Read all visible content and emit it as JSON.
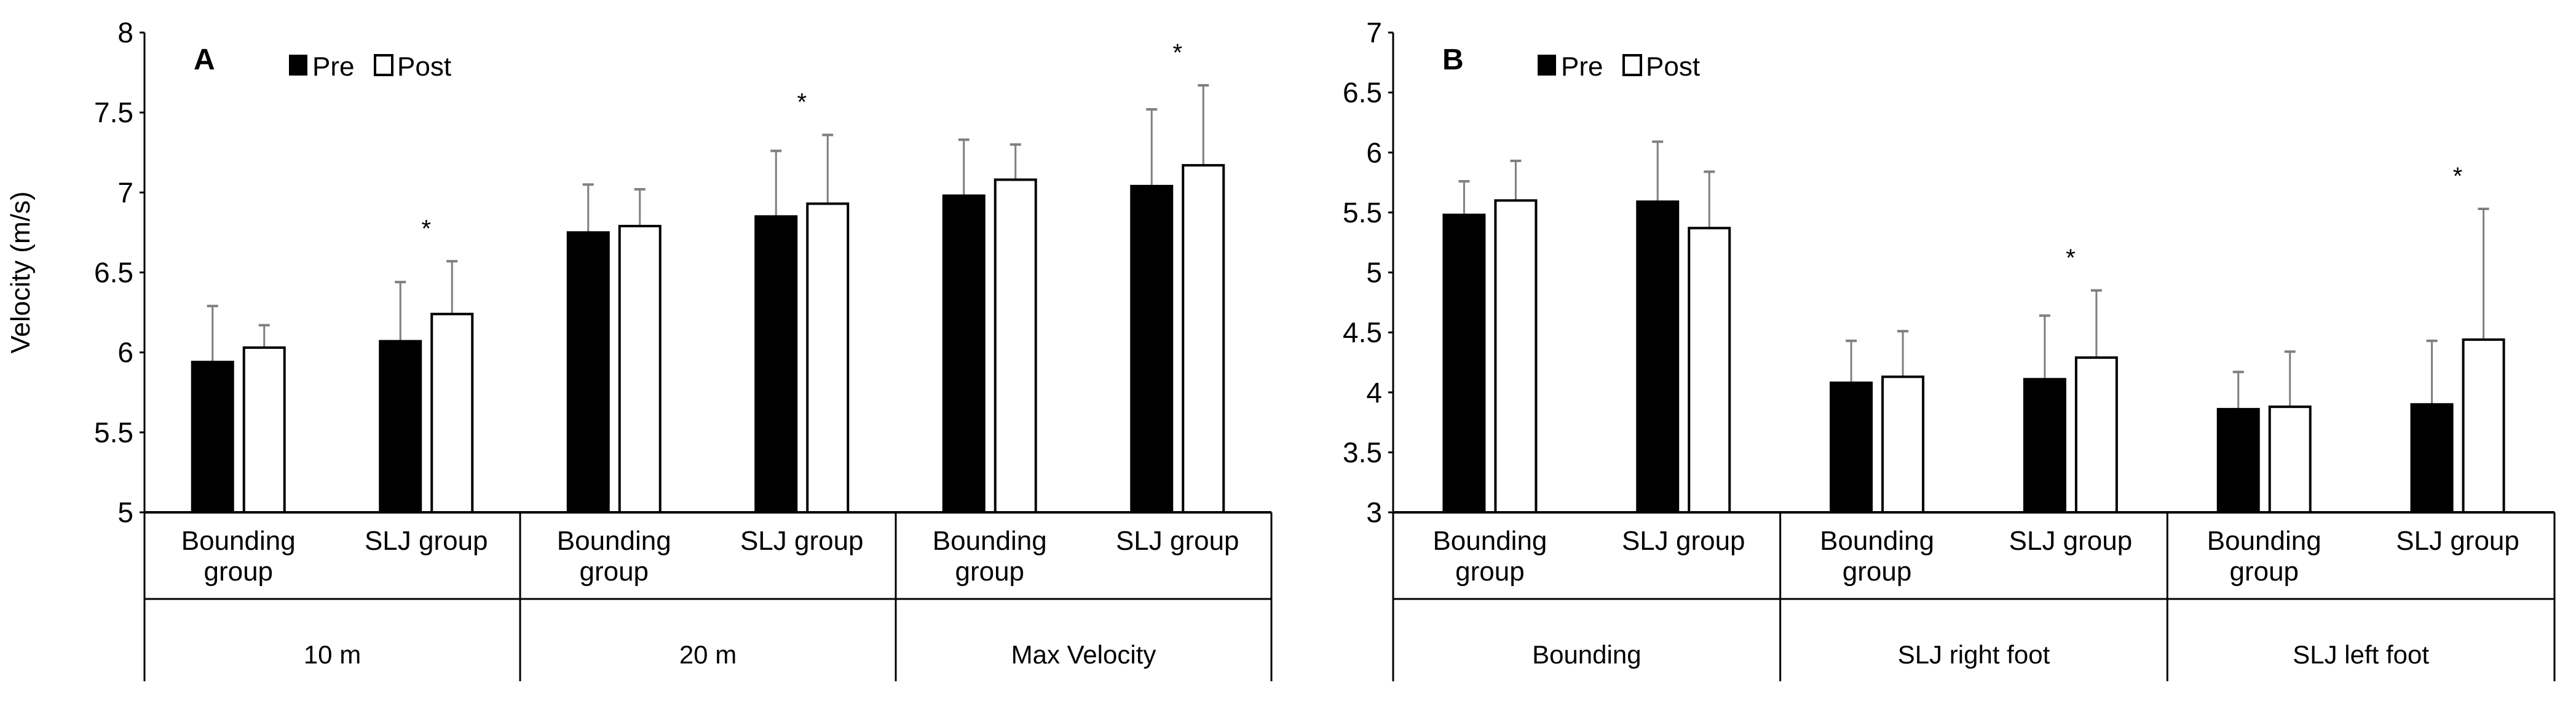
{
  "chart_data": [
    {
      "type": "bar",
      "panel_label": "A",
      "ylabel": "Velocity (m/s)",
      "ylim": [
        5,
        8
      ],
      "yticks": [
        "5",
        "5.5",
        "6",
        "6.5",
        "7",
        "7.5",
        "8"
      ],
      "ytick_values": [
        5,
        5.5,
        6,
        6.5,
        7,
        7.5,
        8
      ],
      "legend": [
        "Pre",
        "Post"
      ],
      "legend_placement": "top-left",
      "groups": [
        {
          "label": "10 m",
          "categories": [
            {
              "label": [
                "Bounding",
                "group"
              ],
              "pre": 5.94,
              "post": 6.03,
              "pre_sd": 0.35,
              "post_sd": 0.14,
              "sig": ""
            },
            {
              "label": [
                "SLJ group"
              ],
              "pre": 6.07,
              "post": 6.24,
              "pre_sd": 0.37,
              "post_sd": 0.33,
              "sig": "*"
            }
          ]
        },
        {
          "label": "20 m",
          "categories": [
            {
              "label": [
                "Bounding",
                "group"
              ],
              "pre": 6.75,
              "post": 6.79,
              "pre_sd": 0.3,
              "post_sd": 0.23,
              "sig": ""
            },
            {
              "label": [
                "SLJ group"
              ],
              "pre": 6.85,
              "post": 6.93,
              "pre_sd": 0.41,
              "post_sd": 0.43,
              "sig": "*"
            }
          ]
        },
        {
          "label": "Max Velocity",
          "categories": [
            {
              "label": [
                "Bounding",
                "group"
              ],
              "pre": 6.98,
              "post": 7.08,
              "pre_sd": 0.35,
              "post_sd": 0.22,
              "sig": ""
            },
            {
              "label": [
                "SLJ group"
              ],
              "pre": 7.04,
              "post": 7.17,
              "pre_sd": 0.48,
              "post_sd": 0.5,
              "sig": "*"
            }
          ]
        }
      ]
    },
    {
      "type": "bar",
      "panel_label": "B",
      "ylabel": "",
      "ylim": [
        3,
        7
      ],
      "yticks": [
        "3",
        "3.5",
        "4",
        "4.5",
        "5",
        "5.5",
        "6",
        "6.5",
        "7"
      ],
      "ytick_values": [
        3,
        3.5,
        4,
        4.5,
        5,
        5.5,
        6,
        6.5,
        7
      ],
      "legend": [
        "Pre",
        "Post"
      ],
      "legend_placement": "top-left",
      "groups": [
        {
          "label": "Bounding",
          "categories": [
            {
              "label": [
                "Bounding",
                "group"
              ],
              "pre": 5.48,
              "post": 5.6,
              "pre_sd": 0.28,
              "post_sd": 0.33,
              "sig": ""
            },
            {
              "label": [
                "SLJ group"
              ],
              "pre": 5.59,
              "post": 5.37,
              "pre_sd": 0.5,
              "post_sd": 0.47,
              "sig": ""
            }
          ]
        },
        {
          "label": "SLJ right foot",
          "categories": [
            {
              "label": [
                "Bounding",
                "group"
              ],
              "pre": 4.08,
              "post": 4.13,
              "pre_sd": 0.35,
              "post_sd": 0.38,
              "sig": ""
            },
            {
              "label": [
                "SLJ group"
              ],
              "pre": 4.11,
              "post": 4.29,
              "pre_sd": 0.53,
              "post_sd": 0.56,
              "sig": "*"
            }
          ]
        },
        {
          "label": "SLJ left foot",
          "categories": [
            {
              "label": [
                "Bounding",
                "group"
              ],
              "pre": 3.86,
              "post": 3.88,
              "pre_sd": 0.31,
              "post_sd": 0.46,
              "sig": ""
            },
            {
              "label": [
                "SLJ group"
              ],
              "pre": 3.9,
              "post": 4.44,
              "pre_sd": 0.53,
              "post_sd": 1.09,
              "sig": "*"
            }
          ]
        }
      ]
    }
  ],
  "colors": {
    "pre": "#000000",
    "post": "#ffffff",
    "error_bar": "#7f7f7f",
    "axis": "#000000"
  }
}
